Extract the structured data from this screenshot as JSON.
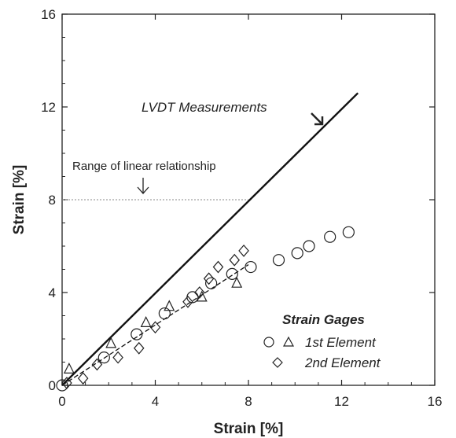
{
  "chart_data": {
    "type": "scatter",
    "xlabel": "Strain [%]",
    "ylabel": "Strain  [%]",
    "xlim": [
      0,
      16
    ],
    "ylim": [
      0,
      16
    ],
    "x_ticks": [
      "0",
      "4",
      "8",
      "12",
      "16"
    ],
    "y_ticks": [
      "0",
      "4",
      "8",
      "12",
      "16"
    ],
    "grid": false,
    "legend": {
      "title": "Strain Gages",
      "placement": "bottom-right",
      "entries": [
        "1st Element",
        "2nd Element"
      ]
    },
    "lines": [
      {
        "name": "LVDT Measurements",
        "style": "solid",
        "x": [
          0,
          12.7
        ],
        "y": [
          0,
          12.6
        ]
      },
      {
        "style": "dashed",
        "x": [
          0,
          8.0
        ],
        "y": [
          0,
          5.2
        ]
      }
    ],
    "series": [
      {
        "name": "1st Element",
        "marker": "circle",
        "x": [
          0.0,
          1.8,
          3.2,
          4.4,
          5.6,
          6.4,
          7.3,
          8.1,
          9.3,
          10.1,
          10.6,
          11.5,
          12.3
        ],
        "y": [
          0.0,
          1.2,
          2.2,
          3.1,
          3.8,
          4.4,
          4.8,
          5.1,
          5.4,
          5.7,
          6.0,
          6.4,
          6.6
        ]
      },
      {
        "name": "1st Element",
        "marker": "triangle",
        "x": [
          0.3,
          2.1,
          3.6,
          4.6,
          6.0,
          7.5
        ],
        "y": [
          0.7,
          1.8,
          2.7,
          3.4,
          3.8,
          4.4
        ]
      },
      {
        "name": "2nd Element",
        "marker": "diamond",
        "x": [
          0.2,
          0.9,
          1.5,
          2.4,
          3.3,
          4.0,
          5.4,
          5.9,
          6.3,
          6.7,
          7.4,
          7.8
        ],
        "y": [
          0.1,
          0.3,
          0.9,
          1.2,
          1.6,
          2.5,
          3.6,
          4.0,
          4.6,
          5.1,
          5.4,
          5.8
        ]
      }
    ],
    "annotations": [
      {
        "text": "LVDT Measurements",
        "x": 7.2,
        "y": 11.9
      },
      {
        "text": "Range of linear relationship",
        "x": 0.8,
        "y": 9.1,
        "line_y": 8.0,
        "line_x": [
          0,
          8
        ]
      }
    ]
  }
}
